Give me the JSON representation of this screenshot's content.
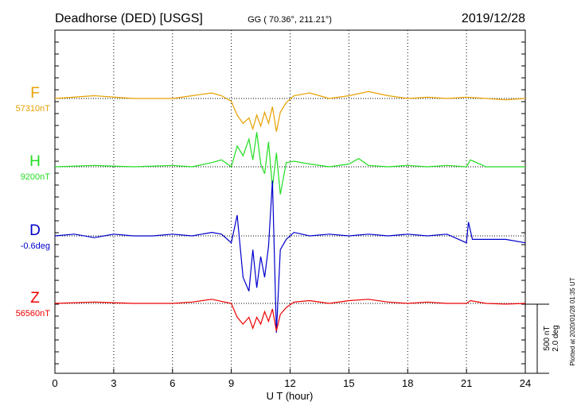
{
  "header": {
    "station": "Deadhorse (DED)  [USGS]",
    "coords": "GG ( 70.36°, 211.21°)",
    "date": "2019/12/28"
  },
  "footer": {
    "plotted": "Plotted at 2020/01/28 01:35 UT",
    "scale_nt": "500 nT",
    "scale_deg": "2.0 deg"
  },
  "chart_data": {
    "type": "line",
    "xlabel": "U T (hour)",
    "xlim": [
      0,
      24
    ],
    "xticks": [
      0,
      3,
      6,
      9,
      12,
      15,
      18,
      21,
      24
    ],
    "grid": true,
    "series": [
      {
        "name": "F",
        "baseline_label": "57310nT",
        "color": "#e8a000",
        "x": [
          0,
          2,
          4,
          6,
          7,
          8,
          8.5,
          9,
          9.3,
          9.6,
          9.9,
          10.1,
          10.3,
          10.5,
          10.7,
          10.9,
          11.1,
          11.3,
          11.5,
          11.8,
          12.2,
          13,
          14,
          15,
          16,
          17,
          18,
          19,
          20,
          21,
          22,
          23,
          24
        ],
        "y": [
          0,
          20,
          0,
          0,
          20,
          40,
          20,
          -20,
          -120,
          -180,
          -140,
          -220,
          -120,
          -200,
          -100,
          -180,
          -60,
          -240,
          -100,
          -30,
          20,
          40,
          0,
          20,
          50,
          20,
          0,
          10,
          0,
          10,
          0,
          -10,
          0
        ]
      },
      {
        "name": "H",
        "baseline_label": "9200nT",
        "color": "#22dd22",
        "x": [
          0,
          2,
          4,
          6,
          7,
          8,
          8.5,
          9,
          9.3,
          9.6,
          9.9,
          10.1,
          10.3,
          10.5,
          10.7,
          10.9,
          11.1,
          11.3,
          11.5,
          11.8,
          12.2,
          13,
          14,
          15,
          15.5,
          16,
          17,
          18,
          19,
          20,
          21,
          21.2,
          22,
          23,
          24
        ],
        "y": [
          0,
          10,
          0,
          10,
          0,
          30,
          50,
          0,
          150,
          80,
          200,
          50,
          250,
          20,
          -50,
          180,
          -150,
          100,
          -200,
          30,
          40,
          20,
          0,
          20,
          60,
          10,
          0,
          10,
          0,
          10,
          0,
          50,
          0,
          0,
          0
        ]
      },
      {
        "name": "D",
        "baseline_label": "-0.6deg",
        "color": "#0000cc",
        "x": [
          0,
          1,
          2,
          3,
          4,
          5,
          6,
          7,
          8,
          8.5,
          9,
          9.3,
          9.6,
          9.9,
          10.1,
          10.3,
          10.5,
          10.7,
          10.9,
          11.1,
          11.3,
          11.5,
          11.8,
          12.2,
          13,
          14,
          15,
          16,
          17,
          18,
          19,
          20,
          21,
          21.1,
          21.3,
          22,
          23,
          24
        ],
        "y": [
          0,
          0.05,
          -0.05,
          0.05,
          0,
          0,
          0.05,
          0,
          0.1,
          0.05,
          -0.2,
          0.6,
          -1.2,
          -1.6,
          -0.4,
          -1.5,
          -0.6,
          -1.2,
          -0.3,
          1.6,
          -2.8,
          -0.4,
          -0.1,
          0.1,
          0,
          0.05,
          0,
          0.05,
          0,
          0.05,
          0,
          0.05,
          -0.2,
          0.4,
          -0.1,
          -0.1,
          -0.1,
          -0.2
        ]
      },
      {
        "name": "Z",
        "baseline_label": "56560nT",
        "color": "#ee0000",
        "x": [
          0,
          2,
          4,
          6,
          7,
          8,
          9,
          9.3,
          9.6,
          9.9,
          10.1,
          10.3,
          10.5,
          10.7,
          10.9,
          11.1,
          11.3,
          11.5,
          11.8,
          12.2,
          13,
          14,
          15,
          16,
          17,
          18,
          19,
          20,
          21,
          21.2,
          22,
          23,
          24
        ],
        "y": [
          0,
          10,
          0,
          0,
          10,
          30,
          0,
          -100,
          -150,
          -100,
          -180,
          -100,
          -150,
          -60,
          -130,
          -40,
          -200,
          -80,
          -30,
          10,
          20,
          0,
          20,
          30,
          10,
          0,
          10,
          0,
          0,
          20,
          0,
          -5,
          0
        ]
      }
    ]
  }
}
